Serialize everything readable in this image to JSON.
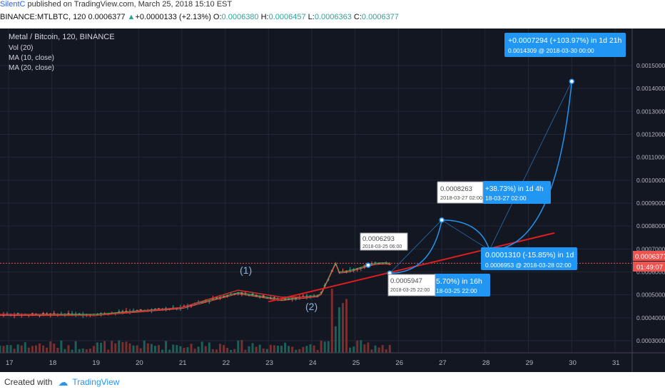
{
  "header": {
    "author": "SilentC",
    "published": "published on TradingView.com, March 25, 2018 15:10 EST"
  },
  "symbol_bar": {
    "symbol": "BINANCE:MTLBTC, 120",
    "last": "0.0006377",
    "change": "+0.0000133 (+2.13%)",
    "open_label": "O:",
    "open": "0.0006380",
    "high_label": "H:",
    "high": "0.0006457",
    "low_label": "L:",
    "low": "0.0006363",
    "close_label": "C:",
    "close": "0.0006377"
  },
  "legend": {
    "title": "Metal / Bitcoin, 120, BINANCE",
    "items": [
      "Vol (20)",
      "MA (10, close)",
      "MA (20, close)"
    ]
  },
  "price_badge": {
    "price": "0.0006377",
    "countdown": "01:49:07"
  },
  "labels": {
    "wave1": "(1)",
    "wave2": "(2)",
    "callout_main_title": "+0.0007294 (+103.97%) in 1d 21h",
    "callout_main_sub": "0.0014309 @ 2018-03-30 00:00",
    "callout_827_title": "+38.73%) in 1d 4h",
    "callout_827_sub": "18-03-27  02:00",
    "callout_827_box_price": "0.0008263",
    "callout_827_box_date": "2018-03-27 02:00",
    "callout_28_title": "0.0001310 (-15.85%) in 1d",
    "callout_28_sub": "0.0006953 @ 2018-03-28  02:00",
    "callout_2593_price": "0.0006293",
    "callout_2593_date": "2018-03-25 06:00",
    "callout_5947_price": "0.0005947",
    "callout_5947_date": "2018-03-25 22:00",
    "callout_5947_title": "5.70%) in 16h",
    "callout_5947_sub": "18-03-25  22:00"
  },
  "chart_data": {
    "type": "candlestick",
    "title": "Metal / Bitcoin, 120, BINANCE",
    "x_ticks": [
      "17",
      "18",
      "19",
      "20",
      "21",
      "22",
      "23",
      "24",
      "25",
      "26",
      "27",
      "28",
      "29",
      "30",
      "31"
    ],
    "y_ticks": [
      "0.0015000",
      "0.0014000",
      "0.0013000",
      "0.0012000",
      "0.0011000",
      "0.0010000",
      "0.0009000",
      "0.0008000",
      "0.0007000",
      "0.0006000",
      "0.0005000",
      "0.0004000",
      "0.0003000"
    ],
    "ylim": [
      0.00026,
      0.00158
    ],
    "grid": true,
    "current_price": 0.0006377,
    "projection_path": [
      {
        "x": 25.8,
        "y": 0.0005947
      },
      {
        "x": 27.0,
        "y": 0.0008263
      },
      {
        "x": 28.1,
        "y": 0.0006953
      },
      {
        "x": 30.0,
        "y": 0.0014309
      }
    ],
    "annotations": [
      {
        "x": 25.3,
        "y": 0.0006293,
        "label": "0.0006293"
      },
      {
        "x": 25.8,
        "y": 0.0005947,
        "label": "0.0005947"
      },
      {
        "x": 27.0,
        "y": 0.0008263,
        "label": "0.0008263"
      },
      {
        "x": 28.1,
        "y": 0.0006953,
        "label": "0.0006953"
      },
      {
        "x": 30.0,
        "y": 0.0014309,
        "label": "0.0014309"
      }
    ],
    "trendline_price": [
      {
        "x": 23.0,
        "y": 0.00047
      },
      {
        "x": 29.6,
        "y": 0.00077
      }
    ],
    "trendline_wave": [
      {
        "x": 16.8,
        "y": 0.000415
      },
      {
        "x": 19.0,
        "y": 0.00041
      },
      {
        "x": 21.0,
        "y": 0.000445
      },
      {
        "x": 22.3,
        "y": 0.00052
      },
      {
        "x": 23.3,
        "y": 0.00049
      },
      {
        "x": 24.0,
        "y": 0.00049
      }
    ]
  },
  "footer": {
    "created_with": "Created with",
    "brand": "TradingView"
  },
  "colors": {
    "up": "#26a69a",
    "down": "#ef5350",
    "blue": "#2196f3",
    "red": "#e01e1e",
    "bg": "#131722"
  }
}
